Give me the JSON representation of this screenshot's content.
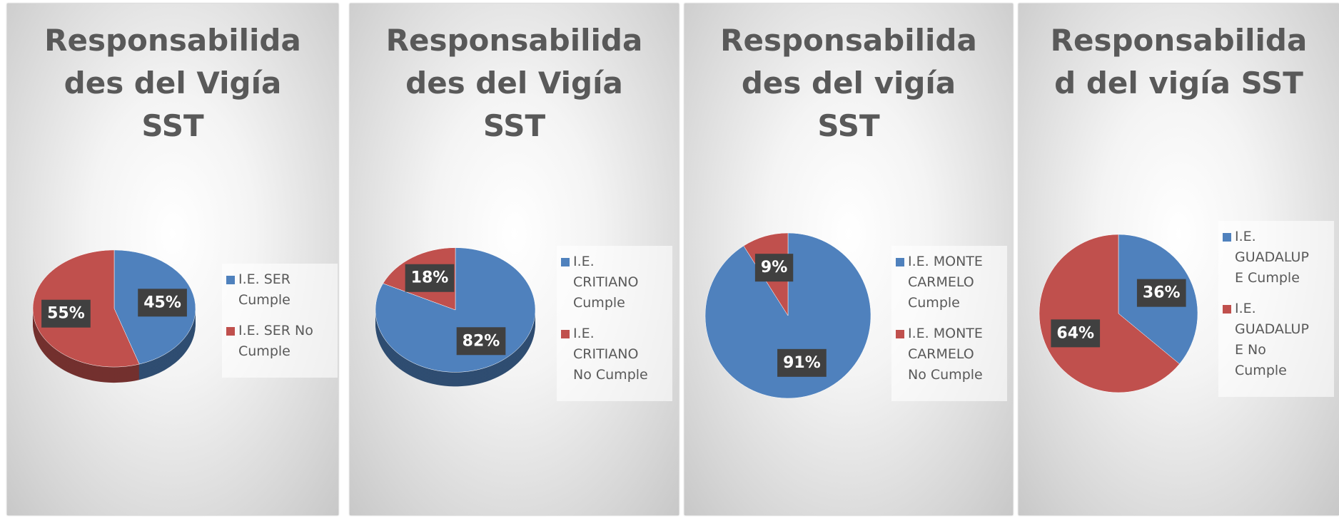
{
  "chart_data": [
    {
      "type": "pie",
      "title": "Responsabilidades del Vigía SST",
      "categories": [
        "I.E. SER Cumple",
        "I.E. SER No Cumple"
      ],
      "values": [
        45,
        55
      ],
      "value_labels": [
        "45%",
        "55%"
      ],
      "colors": [
        "#4f81bd",
        "#c0504d"
      ]
    },
    {
      "type": "pie",
      "title": "Responsabilidades del Vigía SST",
      "categories": [
        "I.E. CRITIANO Cumple",
        "I.E. CRITIANO No Cumple"
      ],
      "values": [
        82,
        18
      ],
      "value_labels": [
        "82%",
        "18%"
      ],
      "colors": [
        "#4f81bd",
        "#c0504d"
      ]
    },
    {
      "type": "pie",
      "title": "Responsabilidades del vigía SST",
      "categories": [
        "I.E. MONTE CARMELO Cumple",
        "I.E. MONTE CARMELO No Cumple"
      ],
      "values": [
        91,
        9
      ],
      "value_labels": [
        "91%",
        "9%"
      ],
      "colors": [
        "#4f81bd",
        "#c0504d"
      ]
    },
    {
      "type": "pie",
      "title": "Responsabilidad del vigía SST",
      "categories": [
        "I.E. GUADALUPE Cumple",
        "I.E. GUADALUPE No Cumple"
      ],
      "values": [
        36,
        64
      ],
      "value_labels": [
        "36%",
        "64%"
      ],
      "colors": [
        "#4f81bd",
        "#c0504d"
      ]
    }
  ]
}
